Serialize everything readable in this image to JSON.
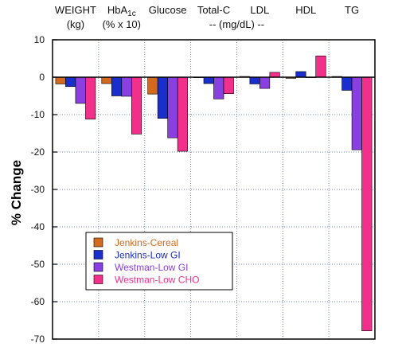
{
  "chart_data": {
    "type": "bar",
    "ylabel": "% Change",
    "ylim": [
      -70,
      10
    ],
    "yticks": [
      10,
      0,
      -10,
      -20,
      -30,
      -40,
      -50,
      -60,
      -70
    ],
    "grid": true,
    "legend_position": "bottom-left",
    "column_headers": [
      {
        "line1": "WEIGHT",
        "line2": "(kg)"
      },
      {
        "line1": "HbA",
        "sub": "1c",
        "line2": "(% x 10)"
      },
      {
        "line1": "Glucose",
        "line2": ""
      },
      {
        "line1": "Total-C",
        "line2": ""
      },
      {
        "line1": "LDL",
        "line2": ""
      },
      {
        "line1": "HDL",
        "line2": ""
      },
      {
        "line1": "TG",
        "line2": ""
      }
    ],
    "group_note": "-- (mg/dL) --",
    "categories": [
      "WEIGHT",
      "HbA1c",
      "Glucose",
      "Total-C",
      "LDL",
      "HDL",
      "TG"
    ],
    "series": [
      {
        "name": "Jenkins-Cereal",
        "color": "#d2691e",
        "values": [
          -1.8,
          -1.7,
          -4.5,
          -0.1,
          0.2,
          -0.3,
          0.2
        ]
      },
      {
        "name": "Jenkins-Low GI",
        "color": "#1a2ecc",
        "values": [
          -2.5,
          -5.0,
          -11.0,
          -1.7,
          -1.8,
          1.5,
          -3.5
        ]
      },
      {
        "name": "Westman-Low GI",
        "color": "#8a3fe0",
        "values": [
          -7.0,
          -5.1,
          -16.2,
          -5.8,
          -3.0,
          0.0,
          -19.4
        ]
      },
      {
        "name": "Westman-Low CHO",
        "color": "#f0308a",
        "values": [
          -11.2,
          -15.2,
          -19.8,
          -4.4,
          1.3,
          5.7,
          -67.8
        ]
      }
    ]
  }
}
